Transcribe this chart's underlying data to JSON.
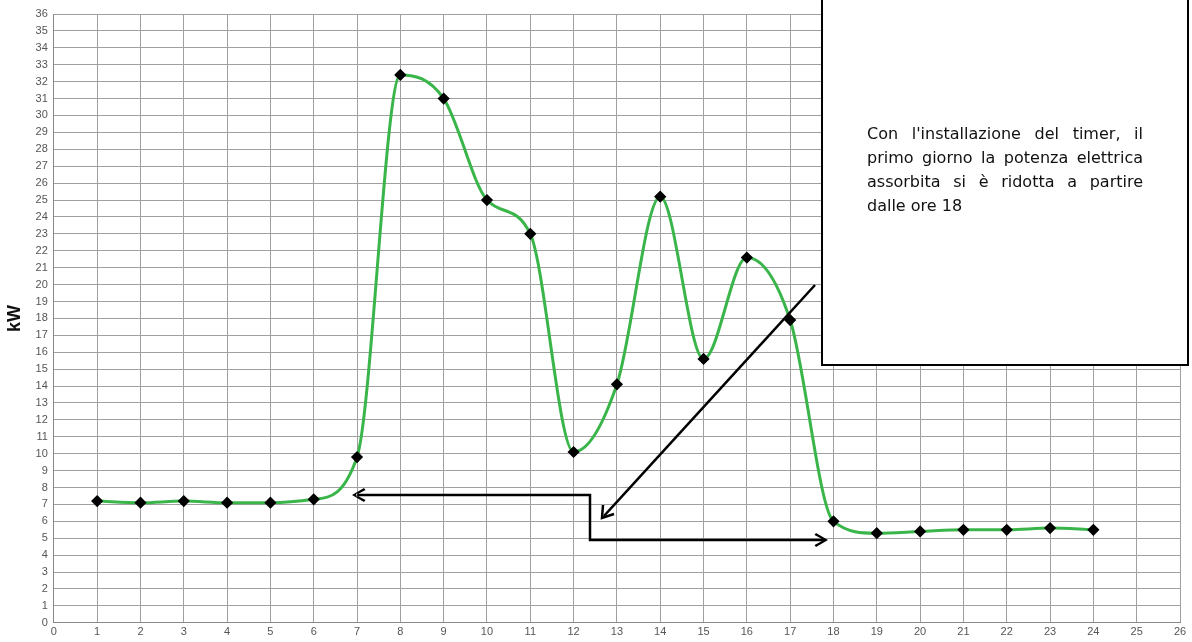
{
  "chart_data": {
    "type": "line",
    "ylabel": "kW",
    "x": [
      1,
      2,
      3,
      4,
      5,
      6,
      7,
      8,
      9,
      10,
      11,
      12,
      13,
      14,
      15,
      16,
      17,
      18,
      19,
      20,
      21,
      22,
      23,
      24
    ],
    "series": [
      {
        "color": "#3ab54a",
        "values": [
          7.2,
          7.1,
          7.2,
          7.1,
          7.1,
          7.3,
          9.8,
          32.4,
          31.0,
          25.0,
          23.0,
          10.1,
          14.1,
          25.2,
          15.6,
          21.6,
          17.9,
          6.0,
          5.3,
          5.4,
          5.5,
          5.5,
          5.6,
          5.5
        ]
      }
    ],
    "xlim": [
      0,
      26
    ],
    "xticks": [
      0,
      1,
      2,
      3,
      4,
      5,
      6,
      7,
      8,
      9,
      10,
      11,
      12,
      13,
      14,
      15,
      16,
      17,
      18,
      19,
      20,
      21,
      22,
      23,
      24,
      25,
      26
    ],
    "ylim": [
      0,
      36
    ],
    "yticks": [
      0,
      1,
      2,
      3,
      4,
      5,
      6,
      7,
      8,
      9,
      10,
      11,
      12,
      13,
      14,
      15,
      16,
      17,
      18,
      19,
      20,
      21,
      22,
      23,
      24,
      25,
      26,
      27,
      28,
      29,
      30,
      31,
      32,
      33,
      34,
      35,
      36
    ],
    "grid": true,
    "legend": false,
    "marker": "diamond",
    "line_style": "solid",
    "annotations": [
      "Con l'installazione del timer, il primo giorno la potenza elettrica assorbita si è ridotta a partire dalle ore 18"
    ]
  }
}
